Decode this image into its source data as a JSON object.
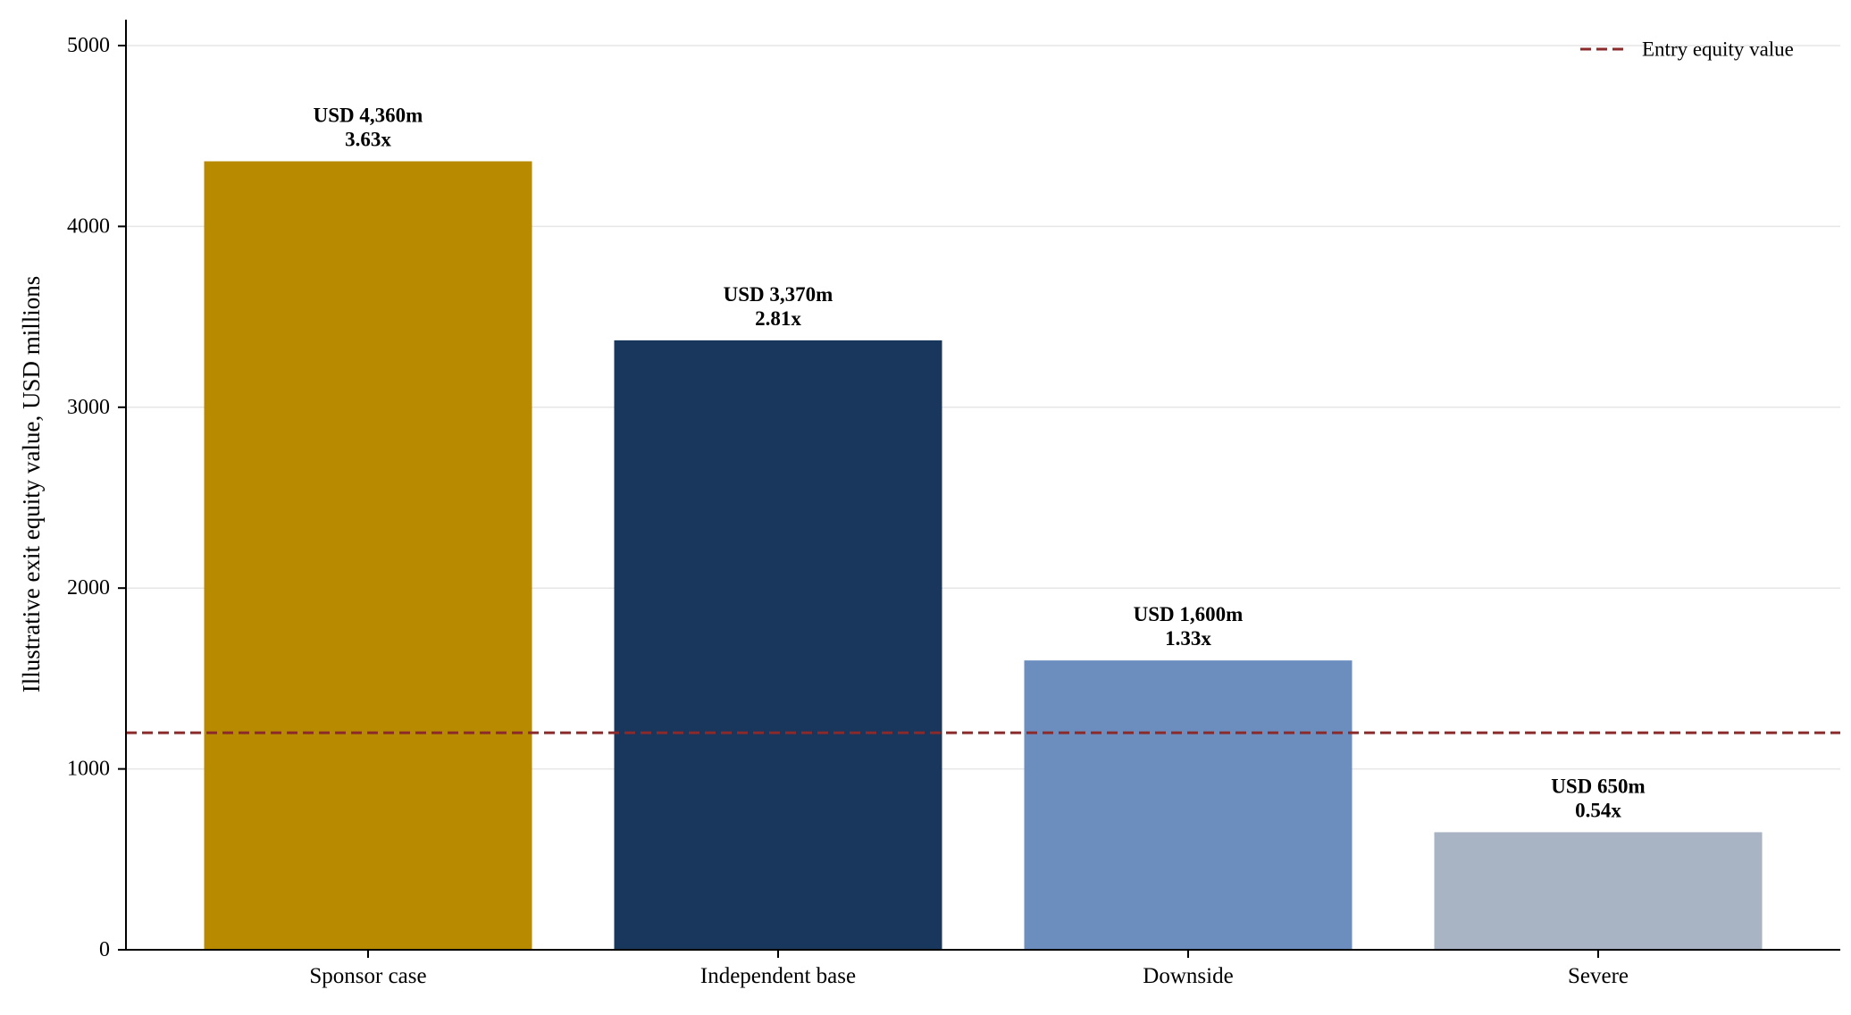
{
  "chart_data": {
    "type": "bar",
    "title": "",
    "xlabel": "",
    "ylabel": "Illustrative exit equity value, USD millions",
    "categories": [
      "Sponsor case",
      "Independent base",
      "Downside",
      "Severe"
    ],
    "values": [
      4360,
      3370,
      1600,
      650
    ],
    "value_labels": [
      "USD 4,360m",
      "USD 3,370m",
      "USD 1,600m",
      "USD 650m"
    ],
    "multiple_labels": [
      "3.63x",
      "2.81x",
      "1.33x",
      "0.54x"
    ],
    "bar_colors": [
      "#b88a00",
      "#19365c",
      "#6c8ebe",
      "#a8b3c3"
    ],
    "ylim": [
      0,
      5150
    ],
    "yticks": [
      0,
      1000,
      2000,
      3000,
      4000,
      5000
    ],
    "ytick_labels": [
      "0",
      "1000",
      "2000",
      "3000",
      "4000",
      "5000"
    ],
    "grid": "horizontal",
    "reference_line": {
      "label": "Entry equity value",
      "value": 1200,
      "color": "#8b2a2a",
      "style": "dashed"
    },
    "legend": {
      "position": "top-right",
      "entries": [
        "Entry equity value"
      ]
    }
  }
}
